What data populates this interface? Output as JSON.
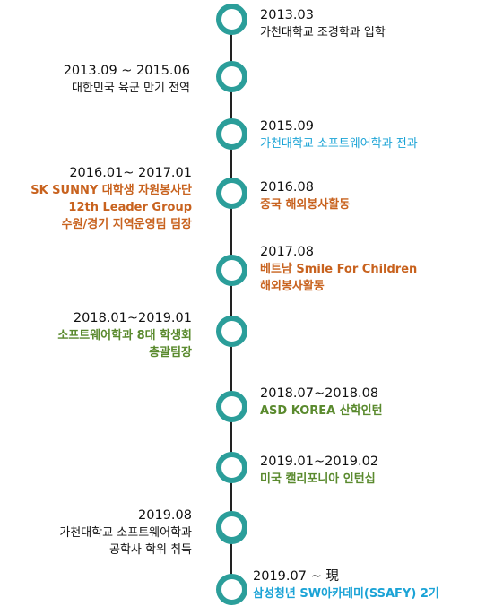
{
  "colors": {
    "node_ring": "#2b9e9a",
    "line": "#222222",
    "default_text": "#111111",
    "cyan": "#1ba3d6",
    "orange": "#c8621e",
    "green": "#5a8a2e"
  },
  "events": [
    {
      "side": "right",
      "date": "2013.03",
      "lines": [
        "가천대학교 조경학과 입학"
      ],
      "color": "#111111",
      "bold": false
    },
    {
      "side": "left",
      "date": "2013.09 ~ 2015.06",
      "lines": [
        "대한민국 육군 만기 전역"
      ],
      "color": "#111111",
      "bold": false
    },
    {
      "side": "right",
      "date": "2015.09",
      "lines": [
        "가천대학교 소프트웨어학과 전과"
      ],
      "color": "#1ba3d6",
      "bold": false
    },
    {
      "side": "left",
      "date": "2016.01~ 2017.01",
      "lines": [
        "SK SUNNY 대학생 자원봉사단",
        "12th Leader Group",
        "수원/경기 지역운영팀 팀장"
      ],
      "color": "#c8621e",
      "bold": true
    },
    {
      "side": "right",
      "date": "2016.08",
      "lines": [
        "중국 해외봉사활동"
      ],
      "color": "#c8621e",
      "bold": true
    },
    {
      "side": "right",
      "date": "2017.08",
      "lines": [
        "베트남 Smile For Children",
        "해외봉사활동"
      ],
      "color": "#c8621e",
      "bold": true
    },
    {
      "side": "left",
      "date": "2018.01~2019.01",
      "lines": [
        "소프트웨어학과 8대 학생회",
        "총괄팀장"
      ],
      "color": "#5a8a2e",
      "bold": true
    },
    {
      "side": "right",
      "date": "2018.07~2018.08",
      "lines": [
        "ASD KOREA 산학인턴"
      ],
      "color": "#5a8a2e",
      "bold": true
    },
    {
      "side": "right",
      "date": "2019.01~2019.02",
      "lines": [
        "미국 캘리포니아 인턴십"
      ],
      "color": "#5a8a2e",
      "bold": true
    },
    {
      "side": "left",
      "date": "2019.08",
      "lines": [
        "가천대학교 소프트웨어학과",
        "공학사 학위 취득"
      ],
      "color": "#111111",
      "bold": false
    },
    {
      "side": "right",
      "date": "2019.07 ~ 現",
      "lines": [
        "삼성청년 SW아카데미(SSAFY) 2기"
      ],
      "color": "#1ba3d6",
      "bold": true
    }
  ]
}
